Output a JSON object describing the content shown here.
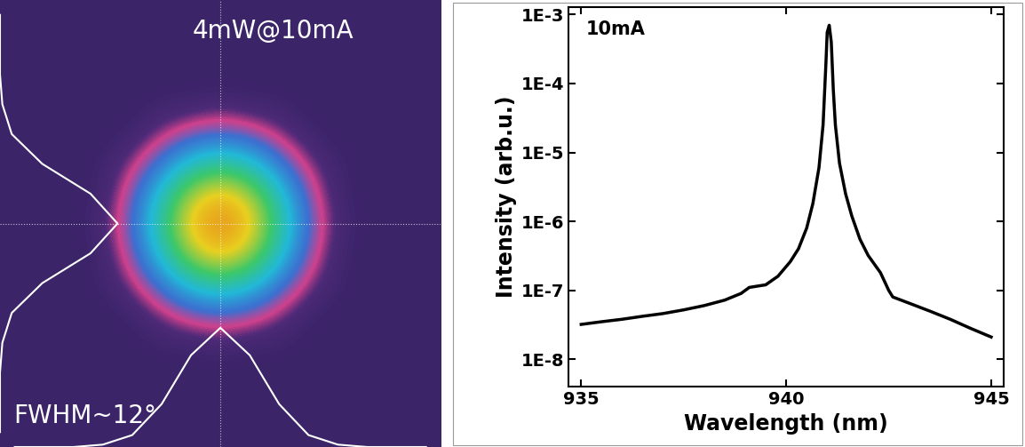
{
  "chart_data": [
    {
      "type": "heatmap",
      "tick_labels": false,
      "annotations": [
        "4mW@10mA",
        "FWHM~12°"
      ],
      "cells": [
        [
          0,
          0,
          0,
          0,
          0,
          0,
          0,
          0,
          0,
          0,
          0,
          0,
          0,
          0,
          0
        ],
        [
          0,
          0,
          0,
          0,
          0,
          0,
          0,
          0,
          0,
          0,
          0,
          0,
          0,
          0,
          0
        ],
        [
          0,
          0,
          0,
          0,
          0,
          0,
          0,
          0,
          0,
          0,
          0,
          0,
          0,
          0,
          0
        ],
        [
          0,
          0,
          0,
          0,
          0,
          0.01,
          0.01,
          0.02,
          0.01,
          0.01,
          0,
          0,
          0,
          0,
          0
        ],
        [
          0,
          0,
          0,
          0,
          0.01,
          0.04,
          0.08,
          0.1,
          0.08,
          0.04,
          0.01,
          0,
          0,
          0,
          0
        ],
        [
          0,
          0,
          0,
          0.01,
          0.04,
          0.13,
          0.28,
          0.36,
          0.28,
          0.13,
          0.04,
          0.01,
          0,
          0,
          0
        ],
        [
          0,
          0,
          0,
          0.01,
          0.08,
          0.28,
          0.6,
          0.77,
          0.6,
          0.28,
          0.08,
          0.01,
          0,
          0,
          0
        ],
        [
          0,
          0,
          0,
          0.02,
          0.1,
          0.36,
          0.77,
          1.0,
          0.77,
          0.36,
          0.1,
          0.02,
          0,
          0,
          0
        ],
        [
          0,
          0,
          0,
          0.01,
          0.08,
          0.28,
          0.6,
          0.77,
          0.6,
          0.28,
          0.08,
          0.01,
          0,
          0,
          0
        ],
        [
          0,
          0,
          0,
          0.01,
          0.04,
          0.13,
          0.28,
          0.36,
          0.28,
          0.13,
          0.04,
          0.01,
          0,
          0,
          0
        ],
        [
          0,
          0,
          0,
          0,
          0.01,
          0.04,
          0.08,
          0.1,
          0.08,
          0.04,
          0.01,
          0,
          0,
          0,
          0
        ],
        [
          0,
          0,
          0,
          0,
          0,
          0.01,
          0.01,
          0.02,
          0.01,
          0.01,
          0,
          0,
          0,
          0,
          0
        ],
        [
          0,
          0,
          0,
          0,
          0,
          0,
          0,
          0,
          0,
          0,
          0,
          0,
          0,
          0,
          0
        ],
        [
          0,
          0,
          0,
          0,
          0,
          0,
          0,
          0,
          0,
          0,
          0,
          0,
          0,
          0,
          0
        ],
        [
          0,
          0,
          0,
          0,
          0,
          0,
          0,
          0,
          0,
          0,
          0,
          0,
          0,
          0,
          0
        ]
      ]
    },
    {
      "type": "line",
      "xlabel": "Wavelength (nm)",
      "ylabel": "Intensity (arb.u.)",
      "annotations": [
        "10mA"
      ],
      "log": "y",
      "color": "#000000",
      "xlim": [
        934.7,
        945.3
      ],
      "ylim": [
        4e-09,
        0.0013
      ],
      "xticks": [
        935,
        940,
        945
      ],
      "yticks": [
        {
          "value": 1e-08,
          "label": "1E-8"
        },
        {
          "value": 1e-07,
          "label": "1E-7"
        },
        {
          "value": 1e-06,
          "label": "1E-6"
        },
        {
          "value": 1e-05,
          "label": "1E-5"
        },
        {
          "value": 0.0001,
          "label": "1E-4"
        },
        {
          "value": 0.001,
          "label": "1E-3"
        }
      ],
      "x": [
        935,
        935.5,
        936,
        936.5,
        937,
        937.5,
        938,
        938.5,
        938.9,
        939.1,
        939.3,
        939.5,
        939.8,
        940.1,
        940.3,
        940.5,
        940.65,
        940.8,
        940.9,
        940.97,
        941.0,
        941.05,
        941.1,
        941.15,
        941.2,
        941.3,
        941.45,
        941.6,
        941.8,
        942.0,
        942.3,
        942.5,
        942.6,
        943,
        943.5,
        944,
        944.5,
        945
      ],
      "values": [
        3.2e-08,
        3.5e-08,
        3.8e-08,
        4.2e-08,
        4.6e-08,
        5.2e-08,
        6e-08,
        7.2e-08,
        9e-08,
        1.1e-07,
        1.15e-07,
        1.2e-07,
        1.6e-07,
        2.6e-07,
        4e-07,
        8e-07,
        1.8e-06,
        6e-06,
        2.5e-05,
        0.0002,
        0.00055,
        0.0007,
        0.0004,
        8e-05,
        2.5e-05,
        7e-06,
        2.5e-06,
        1.2e-06,
        5.5e-07,
        3.2e-07,
        1.8e-07,
        1e-07,
        8e-08,
        6.5e-08,
        5e-08,
        3.8e-08,
        2.8e-08,
        2.1e-08
      ]
    }
  ]
}
